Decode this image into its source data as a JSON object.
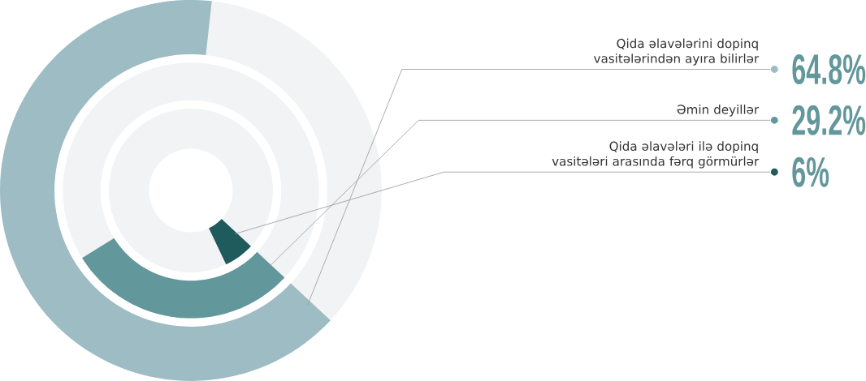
{
  "chart_data": {
    "type": "other",
    "categories": [
      "Qida əlavələrini dopinq vasitələrindən ayıra bilirlər",
      "Əmin deyillər",
      "Qida əlavələri ilə dopinq vasitələri arasında fərq görmürlər"
    ],
    "values": [
      64.8,
      29.2,
      6
    ],
    "colors": [
      "#9dbcc3",
      "#62979b",
      "#1f5a5c"
    ],
    "value_labels": [
      "64.8%",
      "29.2%",
      "6%"
    ]
  }
}
